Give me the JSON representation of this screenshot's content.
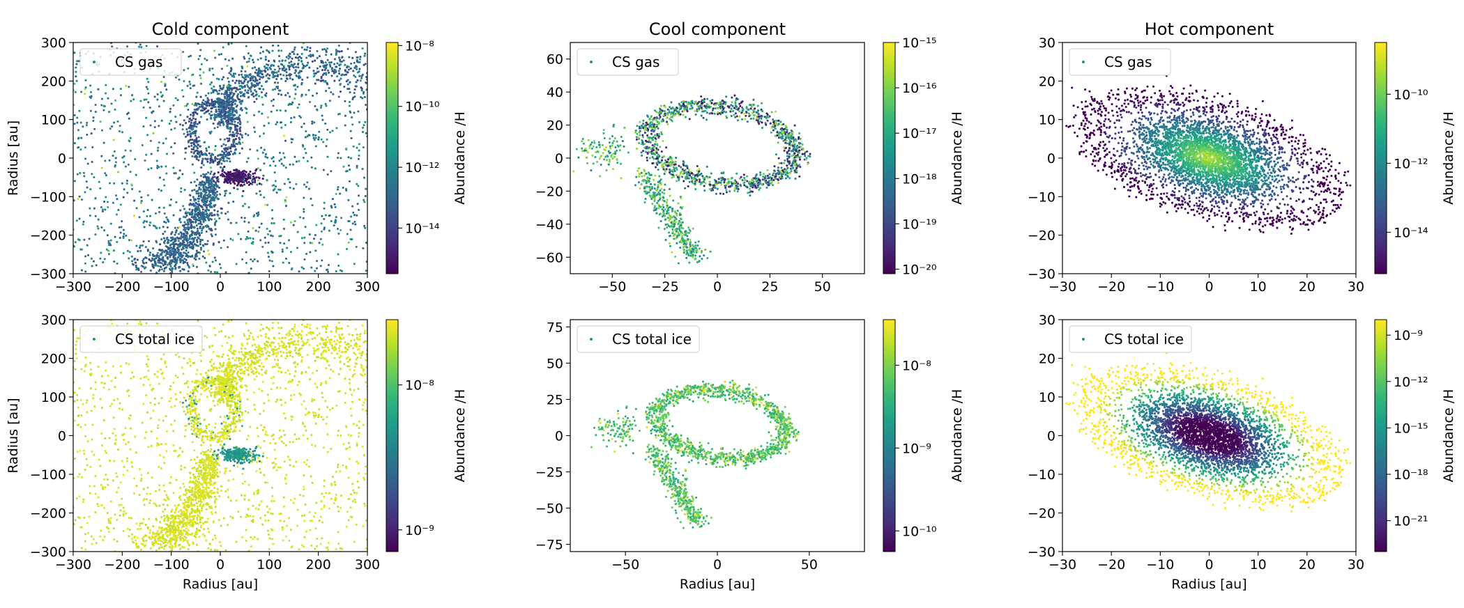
{
  "figure": {
    "colormap": "viridis",
    "colors": {
      "viridis": [
        "#440154",
        "#482878",
        "#3e4989",
        "#31688e",
        "#26828e",
        "#1f9e89",
        "#35b779",
        "#6ece58",
        "#b5de2b",
        "#fde725"
      ]
    }
  },
  "chart_data": [
    {
      "type": "scatter",
      "title": "Cold component",
      "legend": "CS gas",
      "xlabel": "",
      "ylabel": "Radius [au]",
      "xlim": [
        -300,
        300
      ],
      "ylim": [
        -300,
        300
      ],
      "xticks": [
        -300,
        -200,
        -100,
        0,
        100,
        200,
        300
      ],
      "xtick_labels": [
        "−300",
        "−200",
        "−100",
        "0",
        "100",
        "200",
        "300"
      ],
      "yticks": [
        -300,
        -200,
        -100,
        0,
        100,
        200,
        300
      ],
      "ytick_labels": [
        "−300",
        "−200",
        "−100",
        "0",
        "100",
        "200",
        "300"
      ],
      "colorbar": {
        "label": "Abundance /H",
        "log_range": [
          -15.5,
          -7.9
        ],
        "ticks": [
          {
            "exp": -8,
            "text": "10⁻⁸"
          },
          {
            "exp": -10,
            "text": "10⁻¹⁰"
          },
          {
            "exp": -12,
            "text": "10⁻¹²"
          },
          {
            "exp": -14,
            "text": "10⁻¹⁴"
          }
        ]
      },
      "morphology": "cold-spiral",
      "value_pattern": "cold-gas",
      "n_points": 3600
    },
    {
      "type": "scatter",
      "title": "Cool component",
      "legend": "CS gas",
      "xlabel": "",
      "ylabel": "",
      "xlim": [
        -70,
        70
      ],
      "ylim": [
        -70,
        70
      ],
      "xticks": [
        -50,
        -25,
        0,
        25,
        50
      ],
      "xtick_labels": [
        "−50",
        "−25",
        "0",
        "25",
        "50"
      ],
      "yticks": [
        -60,
        -40,
        -20,
        0,
        20,
        40,
        60
      ],
      "ytick_labels": [
        "−60",
        "−40",
        "−20",
        "0",
        "20",
        "40",
        "60"
      ],
      "colorbar": {
        "label": "Abundance /H",
        "log_range": [
          -20.1,
          -15.0
        ],
        "ticks": [
          {
            "exp": -15,
            "text": "10⁻¹⁵"
          },
          {
            "exp": -16,
            "text": "10⁻¹⁶"
          },
          {
            "exp": -17,
            "text": "10⁻¹⁷"
          },
          {
            "exp": -18,
            "text": "10⁻¹⁸"
          },
          {
            "exp": -19,
            "text": "10⁻¹⁹"
          },
          {
            "exp": -20,
            "text": "10⁻²⁰"
          }
        ]
      },
      "morphology": "cool-ring",
      "value_pattern": "cool-gas",
      "n_points": 1700
    },
    {
      "type": "scatter",
      "title": "Hot component",
      "legend": "CS gas",
      "xlabel": "",
      "ylabel": "",
      "xlim": [
        -30,
        30
      ],
      "ylim": [
        -30,
        30
      ],
      "xticks": [
        -30,
        -20,
        -10,
        0,
        10,
        20,
        30
      ],
      "xtick_labels": [
        "−30",
        "−20",
        "−10",
        "0",
        "10",
        "20",
        "30"
      ],
      "yticks": [
        -30,
        -20,
        -10,
        0,
        10,
        20,
        30
      ],
      "ytick_labels": [
        "−30",
        "−20",
        "−10",
        "0",
        "10",
        "20",
        "30"
      ],
      "colorbar": {
        "label": "Abundance /H",
        "log_range": [
          -15.2,
          -8.5
        ],
        "ticks": [
          {
            "exp": -10,
            "text": "10⁻¹⁰"
          },
          {
            "exp": -12,
            "text": "10⁻¹²"
          },
          {
            "exp": -14,
            "text": "10⁻¹⁴"
          }
        ]
      },
      "morphology": "hot-disk",
      "value_pattern": "hot-gas",
      "n_points": 4200
    },
    {
      "type": "scatter",
      "title": "",
      "legend": "CS total ice",
      "xlabel": "Radius [au]",
      "ylabel": "Radius [au]",
      "xlim": [
        -300,
        300
      ],
      "ylim": [
        -300,
        300
      ],
      "xticks": [
        -300,
        -200,
        -100,
        0,
        100,
        200,
        300
      ],
      "xtick_labels": [
        "−300",
        "−200",
        "−100",
        "0",
        "100",
        "200",
        "300"
      ],
      "yticks": [
        -300,
        -200,
        -100,
        0,
        100,
        200,
        300
      ],
      "ytick_labels": [
        "−300",
        "−200",
        "−100",
        "0",
        "100",
        "200",
        "300"
      ],
      "colorbar": {
        "label": "Abundance /H",
        "log_range": [
          -9.15,
          -7.55
        ],
        "ticks": [
          {
            "exp": -8,
            "text": "10⁻⁸"
          },
          {
            "exp": -9,
            "text": "10⁻⁹"
          }
        ]
      },
      "morphology": "cold-spiral",
      "value_pattern": "cold-ice",
      "n_points": 3600
    },
    {
      "type": "scatter",
      "title": "",
      "legend": "CS total ice",
      "xlabel": "Radius [au]",
      "ylabel": "",
      "xlim": [
        -80,
        80
      ],
      "ylim": [
        -80,
        80
      ],
      "xticks": [
        -50,
        0,
        50
      ],
      "xtick_labels": [
        "−50",
        "0",
        "50"
      ],
      "yticks": [
        -75,
        -50,
        -25,
        0,
        25,
        50,
        75
      ],
      "ytick_labels": [
        "−75",
        "−50",
        "−25",
        "0",
        "25",
        "50",
        "75"
      ],
      "colorbar": {
        "label": "Abundance /H",
        "log_range": [
          -10.25,
          -7.45
        ],
        "ticks": [
          {
            "exp": -8,
            "text": "10⁻⁸"
          },
          {
            "exp": -9,
            "text": "10⁻⁹"
          },
          {
            "exp": -10,
            "text": "10⁻¹⁰"
          }
        ]
      },
      "morphology": "cool-ring",
      "value_pattern": "cool-ice",
      "n_points": 1700
    },
    {
      "type": "scatter",
      "title": "",
      "legend": "CS total ice",
      "xlabel": "Radius [au]",
      "ylabel": "",
      "xlim": [
        -30,
        30
      ],
      "ylim": [
        -30,
        30
      ],
      "xticks": [
        -30,
        -20,
        -10,
        0,
        10,
        20,
        30
      ],
      "xtick_labels": [
        "−30",
        "−20",
        "−10",
        "0",
        "10",
        "20",
        "30"
      ],
      "yticks": [
        -30,
        -20,
        -10,
        0,
        10,
        20,
        30
      ],
      "ytick_labels": [
        "−30",
        "−20",
        "−10",
        "0",
        "10",
        "20",
        "30"
      ],
      "colorbar": {
        "label": "Abundance /H",
        "log_range": [
          -23,
          -8
        ],
        "ticks": [
          {
            "exp": -9,
            "text": "10⁻⁹"
          },
          {
            "exp": -12,
            "text": "10⁻¹²"
          },
          {
            "exp": -15,
            "text": "10⁻¹⁵"
          },
          {
            "exp": -18,
            "text": "10⁻¹⁸"
          },
          {
            "exp": -21,
            "text": "10⁻²¹"
          }
        ]
      },
      "morphology": "hot-disk",
      "value_pattern": "hot-ice",
      "n_points": 4200
    }
  ]
}
